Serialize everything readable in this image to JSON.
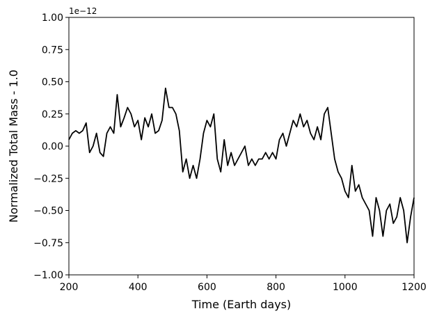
{
  "chart_data": {
    "type": "line",
    "xlabel": "Time (Earth days)",
    "ylabel": "Normalized Total Mass - 1.0",
    "y_offset_label": "1e−12",
    "x": [
      200,
      210,
      220,
      230,
      240,
      250,
      260,
      270,
      280,
      290,
      300,
      310,
      320,
      330,
      340,
      350,
      360,
      370,
      380,
      390,
      400,
      410,
      420,
      430,
      440,
      450,
      460,
      470,
      480,
      490,
      500,
      510,
      520,
      530,
      540,
      550,
      560,
      570,
      580,
      590,
      600,
      610,
      620,
      630,
      640,
      650,
      660,
      670,
      680,
      690,
      700,
      710,
      720,
      730,
      740,
      750,
      760,
      770,
      780,
      790,
      800,
      810,
      820,
      830,
      840,
      850,
      860,
      870,
      880,
      890,
      900,
      910,
      920,
      930,
      940,
      950,
      960,
      970,
      980,
      990,
      1000,
      1010,
      1020,
      1030,
      1040,
      1050,
      1060,
      1070,
      1080,
      1090,
      1100,
      1110,
      1120,
      1130,
      1140,
      1150,
      1160,
      1170,
      1180,
      1190,
      1200
    ],
    "series": [
      {
        "color": "#000000",
        "values": [
          0.05,
          0.1,
          0.12,
          0.1,
          0.12,
          0.18,
          -0.05,
          0.0,
          0.1,
          -0.05,
          -0.08,
          0.1,
          0.15,
          0.1,
          0.4,
          0.15,
          0.22,
          0.3,
          0.25,
          0.15,
          0.2,
          0.05,
          0.22,
          0.15,
          0.25,
          0.1,
          0.12,
          0.2,
          0.45,
          0.3,
          0.3,
          0.25,
          0.12,
          -0.2,
          -0.1,
          -0.25,
          -0.15,
          -0.25,
          -0.1,
          0.1,
          0.2,
          0.15,
          0.25,
          -0.1,
          -0.2,
          0.05,
          -0.15,
          -0.05,
          -0.15,
          -0.1,
          -0.05,
          0.0,
          -0.15,
          -0.1,
          -0.15,
          -0.1,
          -0.1,
          -0.05,
          -0.1,
          -0.05,
          -0.1,
          0.05,
          0.1,
          0.0,
          0.1,
          0.2,
          0.15,
          0.25,
          0.15,
          0.2,
          0.1,
          0.05,
          0.15,
          0.05,
          0.25,
          0.3,
          0.1,
          -0.1,
          -0.2,
          -0.25,
          -0.35,
          -0.4,
          -0.15,
          -0.35,
          -0.3,
          -0.4,
          -0.45,
          -0.5,
          -0.7,
          -0.4,
          -0.5,
          -0.7,
          -0.5,
          -0.45,
          -0.6,
          -0.55,
          -0.4,
          -0.5,
          -0.75,
          -0.55,
          -0.4
        ]
      }
    ],
    "xlim": [
      200,
      1200
    ],
    "xticks": [
      200,
      400,
      600,
      800,
      1000,
      1200
    ],
    "ylim": [
      -1,
      1
    ],
    "yticks": [
      {
        "value": -1,
        "label": "−1.00"
      },
      {
        "value": -0.75,
        "label": "−0.75"
      },
      {
        "value": -0.5,
        "label": "−0.50"
      },
      {
        "value": -0.25,
        "label": "−0.25"
      },
      {
        "value": 0,
        "label": "0.00"
      },
      {
        "value": 0.25,
        "label": "0.25"
      },
      {
        "value": 0.5,
        "label": "0.50"
      },
      {
        "value": 0.75,
        "label": "0.75"
      },
      {
        "value": 1,
        "label": "1.00"
      }
    ]
  }
}
